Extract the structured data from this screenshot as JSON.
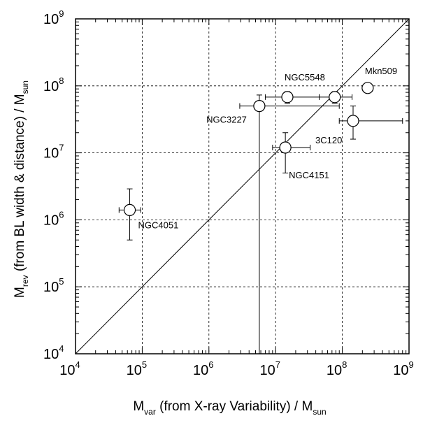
{
  "chart_data": {
    "type": "scatter",
    "x_scale": "log",
    "y_scale": "log",
    "xlim": [
      10000,
      1000000000
    ],
    "ylim": [
      10000,
      1000000000
    ],
    "grid": true,
    "x_ticks": [
      {
        "base": "10",
        "exp": "4",
        "value": 10000
      },
      {
        "base": "10",
        "exp": "5",
        "value": 100000
      },
      {
        "base": "10",
        "exp": "6",
        "value": 1000000
      },
      {
        "base": "10",
        "exp": "7",
        "value": 10000000
      },
      {
        "base": "10",
        "exp": "8",
        "value": 100000000
      },
      {
        "base": "10",
        "exp": "9",
        "value": 1000000000
      }
    ],
    "y_ticks": [
      {
        "base": "10",
        "exp": "4",
        "value": 10000
      },
      {
        "base": "10",
        "exp": "5",
        "value": 100000
      },
      {
        "base": "10",
        "exp": "6",
        "value": 1000000
      },
      {
        "base": "10",
        "exp": "7",
        "value": 10000000
      },
      {
        "base": "10",
        "exp": "8",
        "value": 100000000
      },
      {
        "base": "10",
        "exp": "9",
        "value": 1000000000
      }
    ],
    "xlabel": {
      "main": "M",
      "sub": "var",
      "rest": " (from X-ray Variability) / M",
      "unit_sub": "sun"
    },
    "ylabel": {
      "main": "M",
      "sub": "rev",
      "rest": " (from BL width & distance) / M",
      "unit_sub": "sun"
    },
    "reference_line": {
      "description": "y = x",
      "x": [
        10000,
        1000000000
      ],
      "y": [
        10000,
        1000000000
      ]
    },
    "points": [
      {
        "name": "NGC4051",
        "x": 65000,
        "y": 1400000,
        "xerr": [
          45000,
          95000
        ],
        "yerr": [
          500000,
          2900000
        ],
        "label_dx": 12,
        "label_dy": 26,
        "anchor": "start"
      },
      {
        "name": "NGC3227",
        "x": 5700000,
        "y": 50000000,
        "xerr": [
          2900000,
          90000000
        ],
        "yerr": [
          10000,
          73000000
        ],
        "label_dx": -18,
        "label_dy": 24,
        "anchor": "end"
      },
      {
        "name": "NGC4151",
        "x": 14000000,
        "y": 12000000,
        "xerr": [
          9000000,
          33000000
        ],
        "yerr": [
          5000000,
          20000000
        ],
        "label_dx": 5,
        "label_dy": 44,
        "anchor": "start"
      },
      {
        "name": "NGC5548",
        "x": 15000000,
        "y": 68000000,
        "xerr": [
          7000000,
          45000000
        ],
        "yerr": [
          55000000,
          82000000
        ],
        "label_dx": -4,
        "label_dy": -24,
        "anchor": "start"
      },
      {
        "name": "NGC5548_b",
        "x": 77000000,
        "y": 68000000,
        "xerr": [
          45000000,
          140000000
        ],
        "yerr": [
          55000000,
          82000000
        ],
        "label_dx": 0,
        "label_dy": 0,
        "anchor": "start"
      },
      {
        "name": "3C120",
        "x": 145000000,
        "y": 30000000,
        "xerr": [
          90000000,
          800000000
        ],
        "yerr": [
          16000000,
          50000000
        ],
        "label_dx": -54,
        "label_dy": 32,
        "anchor": "start"
      },
      {
        "name": "Mkn509",
        "x": 240000000,
        "y": 93000000,
        "xerr": [
          210000000,
          270000000
        ],
        "yerr": [
          82000000,
          104000000
        ],
        "label_dx": -4,
        "label_dy": -20,
        "anchor": "start"
      }
    ],
    "visible_labels": [
      "NGC4051",
      "NGC3227",
      "NGC4151",
      "NGC5548",
      "3C120",
      "Mkn509"
    ]
  }
}
